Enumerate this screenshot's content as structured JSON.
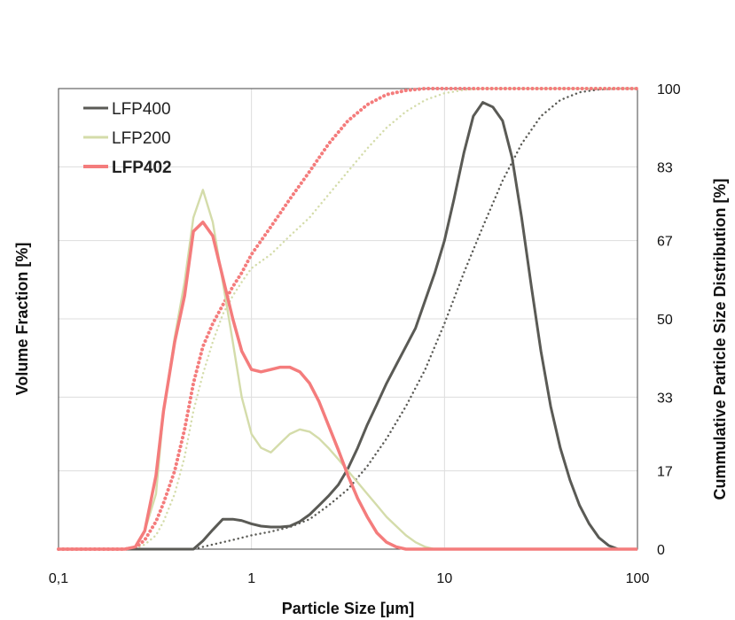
{
  "chart_data": {
    "type": "line",
    "xlabel": "Particle Size [µm]",
    "ylabel_left": "Volume Fraction [%]",
    "ylabel_right": "Cummulative Particle Size Distribution [%]",
    "x_scale": "log",
    "xlim": [
      0.1,
      100
    ],
    "x_ticks": [
      0.1,
      1,
      10,
      100
    ],
    "x_tick_labels": [
      "0,1",
      "1",
      "10",
      "100"
    ],
    "ylim": [
      0,
      100
    ],
    "y_ticks": [
      0,
      17,
      33,
      50,
      67,
      83,
      100
    ],
    "y_tick_labels": [
      "0",
      "17",
      "33",
      "50",
      "67",
      "83",
      "100"
    ],
    "grid": true,
    "legend_position": "top-left",
    "series": [
      {
        "name": "LFP400",
        "color": "#5a5a55",
        "style": "solid",
        "bold_label": false,
        "points": [
          [
            0.1,
            0
          ],
          [
            0.45,
            0
          ],
          [
            0.5,
            0
          ],
          [
            0.56,
            1.8
          ],
          [
            0.63,
            4.2
          ],
          [
            0.71,
            6.5
          ],
          [
            0.8,
            6.5
          ],
          [
            0.89,
            6.2
          ],
          [
            1,
            5.5
          ],
          [
            1.12,
            5
          ],
          [
            1.26,
            4.8
          ],
          [
            1.41,
            4.8
          ],
          [
            1.58,
            5
          ],
          [
            1.78,
            6
          ],
          [
            2,
            7.5
          ],
          [
            2.24,
            9.5
          ],
          [
            2.5,
            11.5
          ],
          [
            2.82,
            14
          ],
          [
            3.16,
            17.5
          ],
          [
            3.55,
            22
          ],
          [
            3.98,
            27
          ],
          [
            4.47,
            31.5
          ],
          [
            5.01,
            36
          ],
          [
            5.62,
            40
          ],
          [
            6.31,
            44
          ],
          [
            7.08,
            48
          ],
          [
            7.94,
            54
          ],
          [
            8.91,
            60
          ],
          [
            10,
            67
          ],
          [
            11.2,
            76
          ],
          [
            12.6,
            86
          ],
          [
            14.1,
            94
          ],
          [
            15.8,
            97
          ],
          [
            17.8,
            96
          ],
          [
            20,
            93
          ],
          [
            22.4,
            85
          ],
          [
            25.1,
            72
          ],
          [
            28.2,
            57
          ],
          [
            31.6,
            43
          ],
          [
            35.5,
            31
          ],
          [
            39.8,
            22
          ],
          [
            44.7,
            15
          ],
          [
            50.1,
            9.5
          ],
          [
            56.2,
            5.5
          ],
          [
            63.1,
            2.5
          ],
          [
            70.8,
            0.8
          ],
          [
            79.4,
            0
          ],
          [
            100,
            0
          ]
        ]
      },
      {
        "name": "LFP200",
        "color": "#d4dcaa",
        "style": "solid",
        "bold_label": false,
        "points": [
          [
            0.1,
            0
          ],
          [
            0.22,
            0
          ],
          [
            0.25,
            0.5
          ],
          [
            0.28,
            4
          ],
          [
            0.32,
            12
          ],
          [
            0.35,
            30
          ],
          [
            0.4,
            46
          ],
          [
            0.45,
            58
          ],
          [
            0.5,
            72
          ],
          [
            0.56,
            78
          ],
          [
            0.63,
            71
          ],
          [
            0.71,
            58
          ],
          [
            0.8,
            45
          ],
          [
            0.89,
            33
          ],
          [
            1,
            25
          ],
          [
            1.12,
            22
          ],
          [
            1.26,
            21
          ],
          [
            1.41,
            23
          ],
          [
            1.58,
            25
          ],
          [
            1.78,
            26
          ],
          [
            2,
            25.5
          ],
          [
            2.24,
            24
          ],
          [
            2.5,
            22
          ],
          [
            2.82,
            19.5
          ],
          [
            3.16,
            17
          ],
          [
            3.55,
            14.5
          ],
          [
            3.98,
            12
          ],
          [
            4.47,
            9.5
          ],
          [
            5.01,
            7
          ],
          [
            5.62,
            5
          ],
          [
            6.31,
            3
          ],
          [
            7.08,
            1.5
          ],
          [
            7.94,
            0.5
          ],
          [
            8.91,
            0
          ],
          [
            100,
            0
          ]
        ]
      },
      {
        "name": "LFP402",
        "color": "#f47c7c",
        "style": "solid",
        "bold_label": true,
        "points": [
          [
            0.1,
            0
          ],
          [
            0.22,
            0
          ],
          [
            0.25,
            0.5
          ],
          [
            0.28,
            4
          ],
          [
            0.32,
            16
          ],
          [
            0.35,
            30
          ],
          [
            0.4,
            45
          ],
          [
            0.45,
            55
          ],
          [
            0.5,
            69
          ],
          [
            0.56,
            71
          ],
          [
            0.63,
            68
          ],
          [
            0.71,
            59
          ],
          [
            0.8,
            50
          ],
          [
            0.89,
            43
          ],
          [
            1,
            39
          ],
          [
            1.12,
            38.5
          ],
          [
            1.26,
            39
          ],
          [
            1.41,
            39.5
          ],
          [
            1.58,
            39.5
          ],
          [
            1.78,
            38.5
          ],
          [
            2,
            36
          ],
          [
            2.24,
            32
          ],
          [
            2.5,
            27
          ],
          [
            2.82,
            21.5
          ],
          [
            3.16,
            16
          ],
          [
            3.55,
            11
          ],
          [
            3.98,
            7
          ],
          [
            4.47,
            3.5
          ],
          [
            5.01,
            1.5
          ],
          [
            5.62,
            0.5
          ],
          [
            6.31,
            0
          ],
          [
            100,
            0
          ]
        ]
      },
      {
        "name": "LFP400 cumulative",
        "color": "#5a5a55",
        "style": "dotted",
        "points": [
          [
            0.1,
            0
          ],
          [
            0.45,
            0
          ],
          [
            0.5,
            0
          ],
          [
            0.63,
            1
          ],
          [
            0.8,
            2
          ],
          [
            1,
            3
          ],
          [
            1.26,
            3.8
          ],
          [
            1.58,
            4.8
          ],
          [
            2,
            6.5
          ],
          [
            2.51,
            9.5
          ],
          [
            3.16,
            13
          ],
          [
            3.98,
            18
          ],
          [
            5.01,
            24
          ],
          [
            6.31,
            31
          ],
          [
            7.94,
            39
          ],
          [
            10,
            49
          ],
          [
            12.6,
            60
          ],
          [
            15.8,
            70
          ],
          [
            20,
            80
          ],
          [
            25.1,
            88
          ],
          [
            31.6,
            94
          ],
          [
            39.8,
            97.5
          ],
          [
            50.1,
            99.2
          ],
          [
            63.1,
            99.8
          ],
          [
            79.4,
            100
          ],
          [
            100,
            100
          ]
        ]
      },
      {
        "name": "LFP200 cumulative",
        "color": "#d4dcaa",
        "style": "dotted",
        "points": [
          [
            0.1,
            0
          ],
          [
            0.22,
            0
          ],
          [
            0.25,
            0.2
          ],
          [
            0.28,
            1
          ],
          [
            0.32,
            3
          ],
          [
            0.35,
            6
          ],
          [
            0.4,
            12
          ],
          [
            0.45,
            20
          ],
          [
            0.5,
            30
          ],
          [
            0.56,
            38
          ],
          [
            0.63,
            45
          ],
          [
            0.71,
            51
          ],
          [
            0.8,
            55
          ],
          [
            0.89,
            58
          ],
          [
            1,
            61
          ],
          [
            1.26,
            64
          ],
          [
            1.58,
            68
          ],
          [
            2,
            72
          ],
          [
            2.51,
            77
          ],
          [
            3.16,
            82
          ],
          [
            3.98,
            87
          ],
          [
            5.01,
            91.5
          ],
          [
            6.31,
            95
          ],
          [
            7.94,
            97.5
          ],
          [
            10,
            99
          ],
          [
            12.6,
            99.7
          ],
          [
            15.8,
            100
          ],
          [
            100,
            100
          ]
        ]
      },
      {
        "name": "LFP402 cumulative",
        "color": "#f47c7c",
        "style": "dotted",
        "points": [
          [
            0.1,
            0
          ],
          [
            0.22,
            0
          ],
          [
            0.25,
            0.3
          ],
          [
            0.28,
            2
          ],
          [
            0.32,
            6
          ],
          [
            0.35,
            10
          ],
          [
            0.4,
            17
          ],
          [
            0.45,
            26
          ],
          [
            0.5,
            36
          ],
          [
            0.56,
            44
          ],
          [
            0.63,
            49
          ],
          [
            0.71,
            53
          ],
          [
            0.8,
            57
          ],
          [
            0.89,
            60
          ],
          [
            1,
            64
          ],
          [
            1.26,
            70
          ],
          [
            1.58,
            76
          ],
          [
            2,
            82
          ],
          [
            2.51,
            88
          ],
          [
            3.16,
            93
          ],
          [
            3.98,
            96.5
          ],
          [
            5.01,
            98.7
          ],
          [
            6.31,
            99.6
          ],
          [
            7.94,
            100
          ],
          [
            100,
            100
          ]
        ]
      }
    ]
  }
}
